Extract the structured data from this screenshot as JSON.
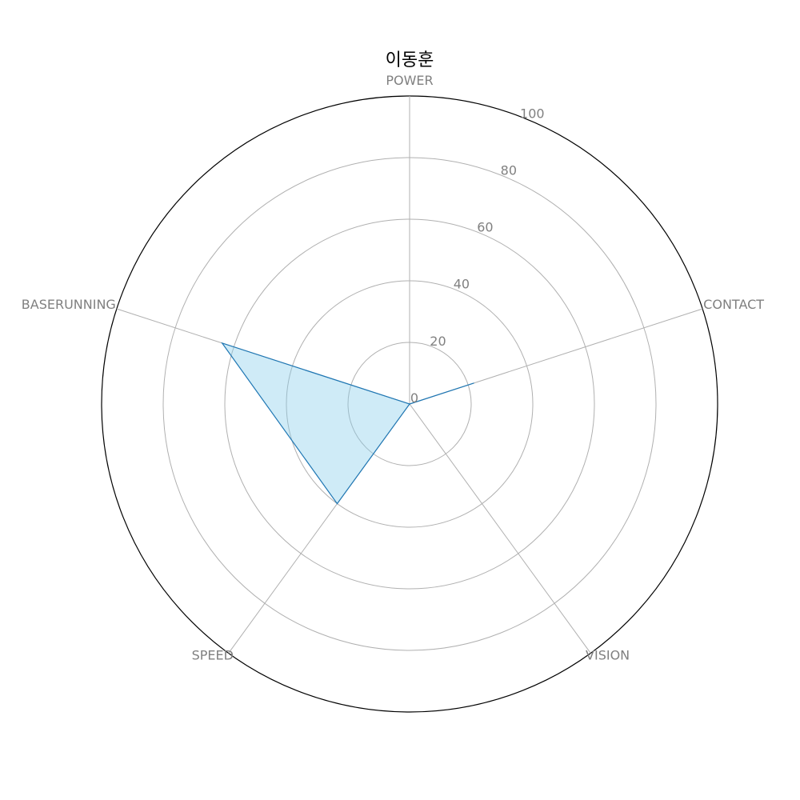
{
  "chart_data": {
    "type": "radar",
    "title": "이동훈",
    "axes": [
      "POWER",
      "CONTACT",
      "VISION",
      "SPEED",
      "BASERUNNING"
    ],
    "series": [
      {
        "values": [
          0,
          22,
          0,
          40,
          64
        ]
      }
    ],
    "rlim": [
      0,
      100
    ],
    "rticks": [
      "0",
      "20",
      "40",
      "60",
      "80",
      "100"
    ],
    "grid": true,
    "colors": {
      "line": "#1f77b4",
      "fill": "#87ceeb",
      "grid": "#b0b0b0",
      "outer_ring": "#000000",
      "label": "#808080"
    }
  }
}
